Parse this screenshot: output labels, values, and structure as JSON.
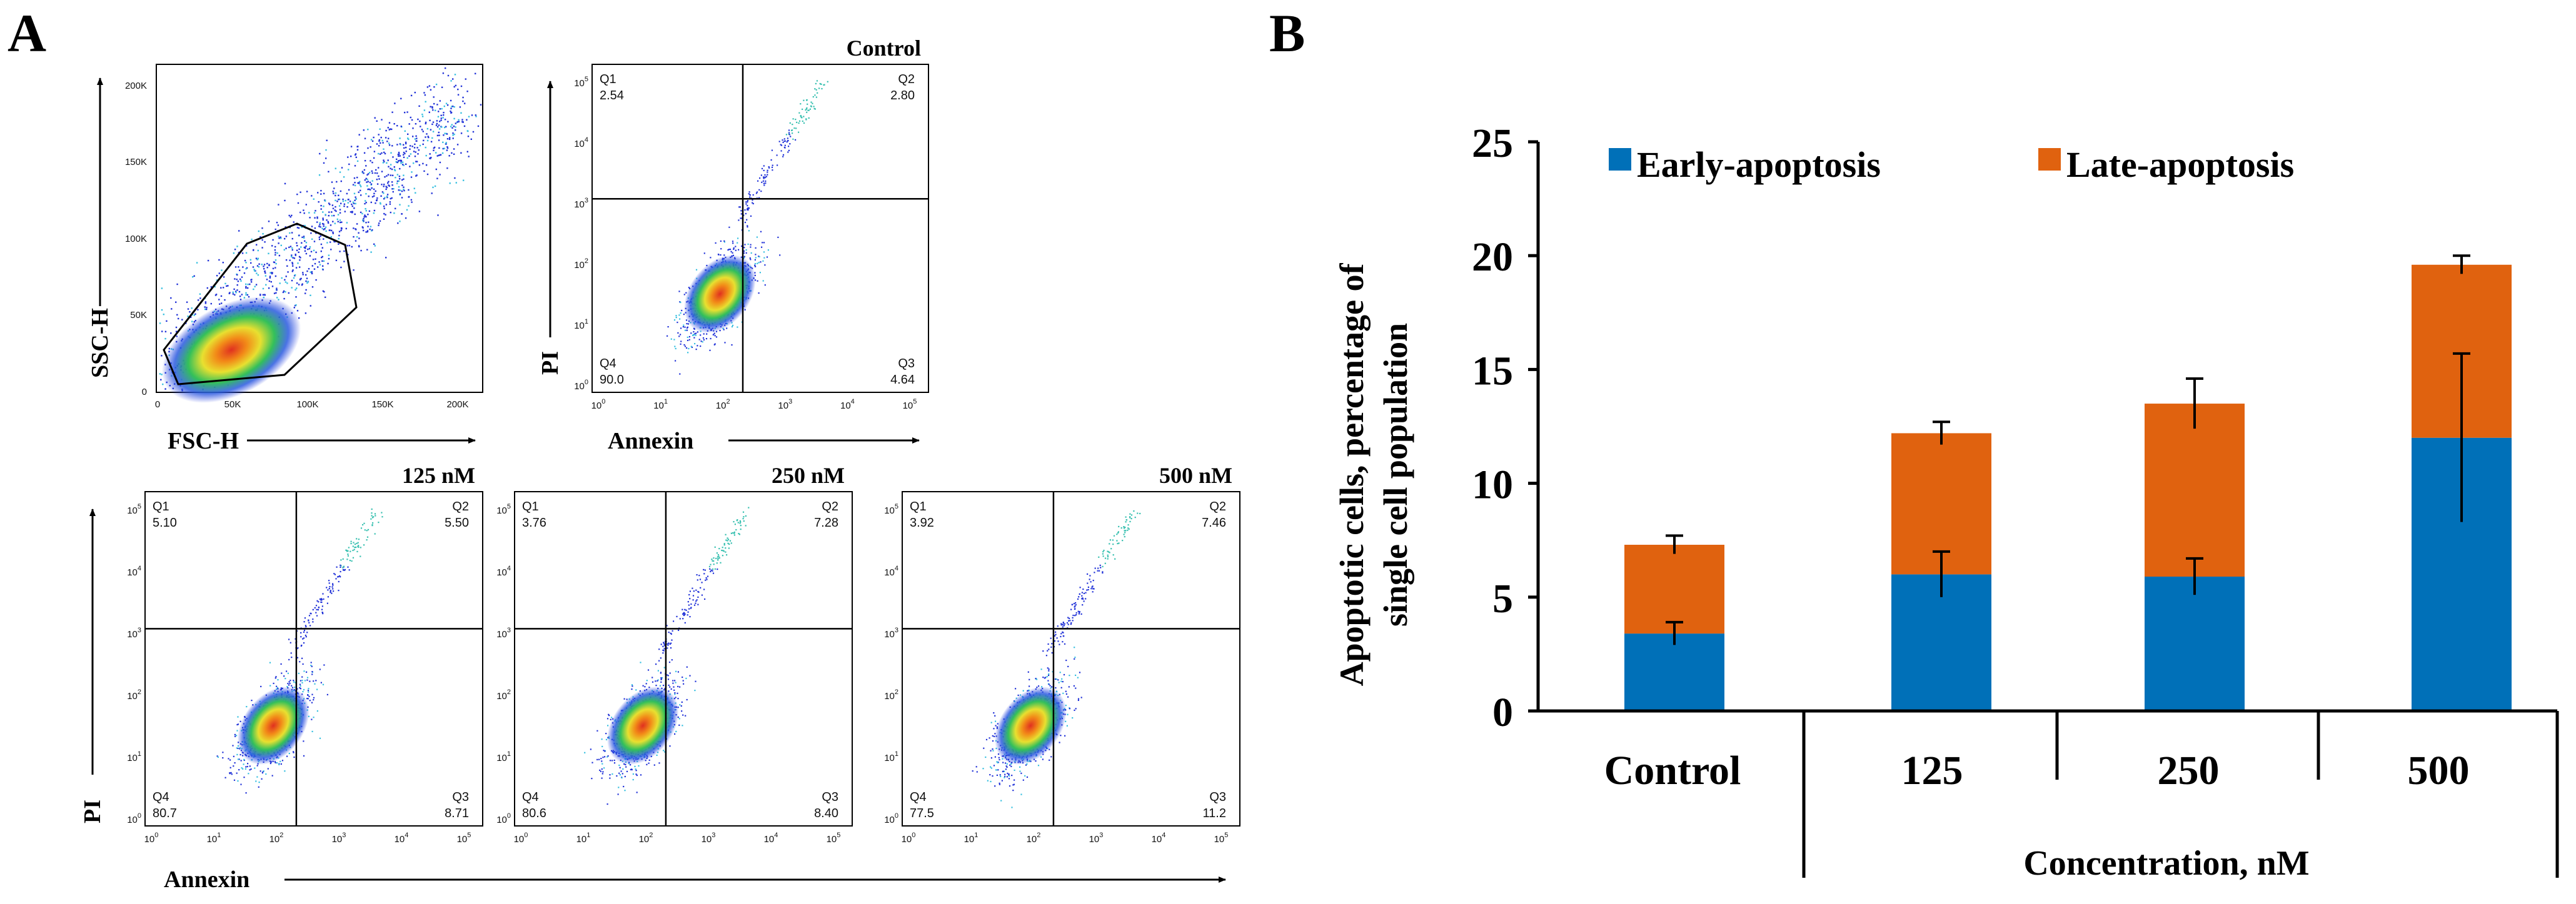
{
  "panel_a": {
    "letter": "A",
    "gating_plot": {
      "xlabel": "FSC-H",
      "ylabel": "SSC-H",
      "x_ticks": [
        "0",
        "50K",
        "100K",
        "150K",
        "200K"
      ],
      "y_ticks": [
        "0",
        "50K",
        "100K",
        "150K",
        "200K"
      ]
    },
    "quadrant_plots": [
      {
        "title": "Control",
        "q1_label": "Q1",
        "q1": "2.54",
        "q2_label": "Q2",
        "q2": "2.80",
        "q3_label": "Q3",
        "q3": "4.64",
        "q4_label": "Q4",
        "q4": "90.0"
      },
      {
        "title": "125 nM",
        "q1_label": "Q1",
        "q1": "5.10",
        "q2_label": "Q2",
        "q2": "5.50",
        "q3_label": "Q3",
        "q3": "8.71",
        "q4_label": "Q4",
        "q4": "80.7"
      },
      {
        "title": "250 nM",
        "q1_label": "Q1",
        "q1": "3.76",
        "q2_label": "Q2",
        "q2": "7.28",
        "q3_label": "Q3",
        "q3": "8.40",
        "q4_label": "Q4",
        "q4": "80.6"
      },
      {
        "title": "500 nM",
        "q1_label": "Q1",
        "q1": "3.92",
        "q2_label": "Q2",
        "q2": "7.46",
        "q3_label": "Q3",
        "q3": "11.2",
        "q4_label": "Q4",
        "q4": "77.5"
      }
    ],
    "quadrant_xlabel": "Annexin",
    "quadrant_ylabel": "PI",
    "log_tick_base": "10",
    "log_tick_exponents": [
      "0",
      "1",
      "2",
      "3",
      "4",
      "5"
    ]
  },
  "panel_b": {
    "letter": "B"
  },
  "chart_data": {
    "type": "bar",
    "stacked": true,
    "title": "",
    "categories": [
      "Control",
      "125",
      "250",
      "500"
    ],
    "series": [
      {
        "name": "Early-apoptosis",
        "color": "#0070b8",
        "values": [
          3.4,
          6.0,
          5.9,
          12.0
        ],
        "errors": [
          0.5,
          1.0,
          0.8,
          3.7
        ]
      },
      {
        "name": "Late-apoptosis",
        "color": "#e0620f",
        "values": [
          3.9,
          6.2,
          7.6,
          7.6
        ],
        "errors": [
          0.4,
          0.5,
          1.1,
          0.4
        ]
      }
    ],
    "ylabel_line1": "Apoptotic cells, percentage of",
    "ylabel_line2": "single cell population",
    "xlabel": "Concentration, nM",
    "ylim": [
      0,
      25
    ],
    "y_ticks": [
      "0",
      "5",
      "10",
      "15",
      "20",
      "25"
    ],
    "legend_position": "top"
  }
}
